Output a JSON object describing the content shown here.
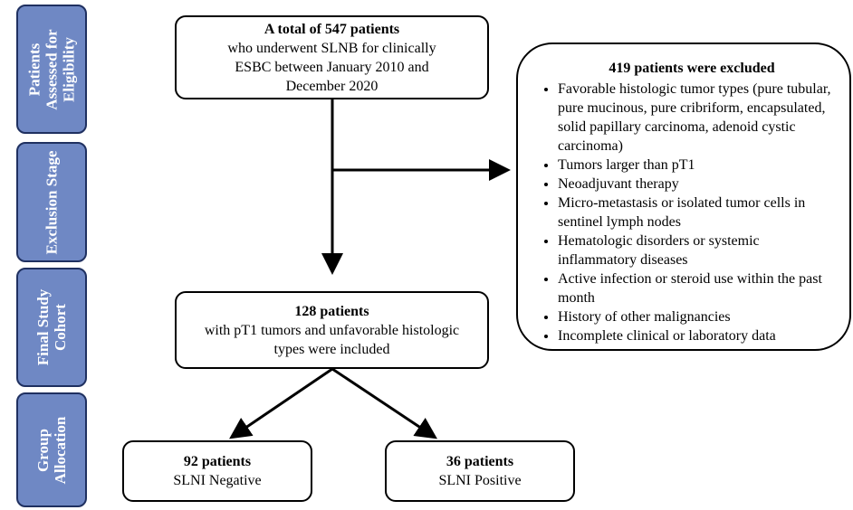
{
  "stages": [
    "Patients Assessed for Eligibility",
    "Exclusion Stage",
    "Final Study Cohort",
    "Group Allocation"
  ],
  "boxes": {
    "start": {
      "title": "A total of 547 patients",
      "body": "who underwent SLNB for clinically ESBC between January 2010 and December 2020"
    },
    "excluded": {
      "title": "419 patients were excluded",
      "items": [
        "Favorable histologic tumor types (pure tubular, pure mucinous, pure cribriform, encapsulated, solid papillary carcinoma, adenoid cystic carcinoma)",
        "Tumors larger than pT1",
        "Neoadjuvant therapy",
        "Micro-metastasis or isolated tumor cells in sentinel lymph nodes",
        "Hematologic disorders or systemic inflammatory diseases",
        "Active infection or steroid use within the past month",
        "History of other malignancies",
        "Incomplete clinical or laboratory data"
      ]
    },
    "cohort": {
      "title": "128 patients",
      "body": "with pT1 tumors and unfavorable histologic types were included"
    },
    "negative": {
      "title": "92 patients",
      "body": "SLNI Negative"
    },
    "positive": {
      "title": "36 patients",
      "body": "SLNI Positive"
    }
  }
}
